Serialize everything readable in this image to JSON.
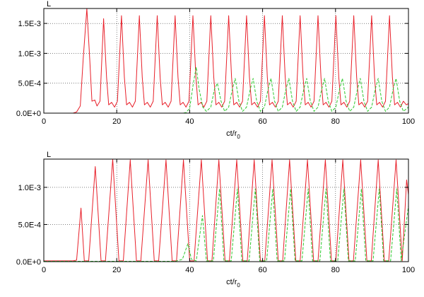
{
  "chart_data": [
    {
      "type": "line",
      "title": "",
      "ylabel": "L",
      "xlabel": "ct/r",
      "xlabel_sub": "0",
      "xlim": [
        0,
        100
      ],
      "ylim": [
        0,
        0.00175
      ],
      "xticks": [
        0,
        20,
        40,
        60,
        80,
        100
      ],
      "yticks": [
        {
          "value": 0,
          "label": "0.0E+0"
        },
        {
          "value": 0.0005,
          "label": "5.0E-4"
        },
        {
          "value": 0.001,
          "label": "1.0E-3"
        },
        {
          "value": 0.0015,
          "label": "1.5E-3"
        }
      ],
      "grid": true,
      "legend": "none",
      "series": [
        {
          "color": "#e8202a",
          "style": "solid",
          "x": [
            0,
            8,
            9,
            10,
            10.8,
            11.8,
            12.6,
            13.2,
            14,
            14.6,
            15.4,
            16.4,
            17.2,
            17.8,
            18.6,
            19.4,
            20.2,
            21.3,
            22.1,
            22.7,
            23.5,
            24.3,
            25.1,
            26.2,
            27,
            27.6,
            28.4,
            29.2,
            30,
            31.1,
            31.9,
            32.5,
            33.3,
            34.1,
            34.9,
            36,
            36.8,
            37.4,
            38.2,
            39,
            39.8,
            40.9,
            41.7,
            42.3,
            43.1,
            43.9,
            44.7,
            45.8,
            46.6,
            47.2,
            48,
            48.8,
            49.6,
            50.7,
            51.5,
            52.1,
            52.9,
            53.7,
            54.5,
            55.6,
            56.4,
            57,
            57.8,
            58.6,
            59.4,
            60.5,
            61.3,
            61.9,
            62.7,
            63.5,
            64.3,
            65.4,
            66.2,
            66.8,
            67.6,
            68.4,
            69.2,
            70.3,
            71.1,
            71.7,
            72.5,
            73.3,
            74.1,
            75.2,
            76,
            76.6,
            77.4,
            78.2,
            79,
            80.1,
            80.9,
            81.5,
            82.3,
            83.1,
            83.9,
            85,
            85.8,
            86.4,
            87.2,
            88,
            88.8,
            89.9,
            90.7,
            91.3,
            92.1,
            92.9,
            93.7,
            94.8,
            95.6,
            96.2,
            97,
            97.8,
            98.6,
            99.4,
            100
          ],
          "y": [
            0,
            0,
            2e-05,
            0.00012,
            0.0009,
            0.00175,
            0.0009,
            0.0002,
            0.00022,
            0.00012,
            0.0002,
            0.00158,
            0.0006,
            0.00014,
            0.00018,
            0.0001,
            0.0002,
            0.00163,
            0.0006,
            0.00014,
            0.00018,
            0.0001,
            0.0002,
            0.00163,
            0.0006,
            0.00014,
            0.00018,
            0.0001,
            0.0002,
            0.00163,
            0.0006,
            0.00014,
            0.00018,
            0.0001,
            0.0002,
            0.00163,
            0.0006,
            0.00014,
            0.00018,
            0.0001,
            0.0002,
            0.00163,
            0.0006,
            0.00014,
            0.00018,
            0.0001,
            0.0002,
            0.00163,
            0.0006,
            0.00014,
            0.00018,
            0.0001,
            0.0002,
            0.00163,
            0.0006,
            0.00014,
            0.00018,
            0.0001,
            0.0002,
            0.00163,
            0.0006,
            0.00014,
            0.00018,
            0.0001,
            0.0002,
            0.00163,
            0.0006,
            0.00014,
            0.00018,
            0.0001,
            0.0002,
            0.00163,
            0.0006,
            0.00014,
            0.00018,
            0.0001,
            0.0002,
            0.00163,
            0.0006,
            0.00014,
            0.00018,
            0.0001,
            0.0002,
            0.00163,
            0.0006,
            0.00014,
            0.00018,
            0.0001,
            0.0002,
            0.00163,
            0.0006,
            0.00014,
            0.00018,
            0.0001,
            0.0002,
            0.00163,
            0.0006,
            0.00014,
            0.00018,
            0.0001,
            0.0002,
            0.00163,
            0.0006,
            0.00014,
            0.00018,
            0.0001,
            0.0002,
            0.00163,
            0.0006,
            0.00014,
            0.00018,
            0.0001,
            0.0002,
            0.00014,
            0.00016
          ]
        },
        {
          "color": "#2ec82e",
          "style": "dashed",
          "x": [
            0,
            38,
            39,
            40,
            41,
            41.8,
            42.6,
            43.6,
            44.6,
            45.8,
            46.8,
            47.6,
            48.6,
            49.6,
            50.7,
            51.7,
            52.5,
            53.5,
            54.5,
            55.6,
            56.6,
            57.4,
            58.4,
            59.4,
            60.5,
            61.5,
            62.3,
            63.3,
            64.3,
            65.4,
            66.4,
            67.2,
            68.2,
            69.2,
            70.3,
            71.3,
            72.1,
            73.1,
            74.1,
            75.2,
            76.2,
            77,
            78,
            79,
            80.1,
            81.1,
            81.9,
            82.9,
            83.9,
            85,
            86,
            86.8,
            87.8,
            88.8,
            89.9,
            90.9,
            91.7,
            92.7,
            93.7,
            94.8,
            95.8,
            96.6,
            97.6,
            98.6,
            100
          ],
          "y": [
            0,
            0,
            1e-05,
            8e-05,
            0.0005,
            0.00077,
            0.0004,
            0.0001,
            3e-05,
            0.0001,
            0.0004,
            0.0005,
            0.0002,
            3e-05,
            0.0001,
            0.0004,
            0.00058,
            0.0002,
            3e-05,
            0.0001,
            0.0004,
            0.00058,
            0.0002,
            3e-05,
            0.0001,
            0.0004,
            0.00058,
            0.0002,
            3e-05,
            0.0001,
            0.0004,
            0.00058,
            0.0002,
            3e-05,
            0.0001,
            0.0004,
            0.00058,
            0.0002,
            3e-05,
            0.0001,
            0.0004,
            0.00058,
            0.0002,
            3e-05,
            0.0001,
            0.0004,
            0.00058,
            0.0002,
            3e-05,
            0.0001,
            0.0004,
            0.00058,
            0.0002,
            3e-05,
            0.0001,
            0.0004,
            0.00058,
            0.0002,
            3e-05,
            0.0001,
            0.0004,
            0.00058,
            0.0002,
            3e-05,
            0.0001
          ]
        }
      ]
    },
    {
      "type": "line",
      "title": "",
      "ylabel": "L",
      "xlabel": "ct/r",
      "xlabel_sub": "0",
      "xlim": [
        0,
        100
      ],
      "ylim": [
        0,
        0.00138
      ],
      "xticks": [
        0,
        20,
        40,
        60,
        80,
        100
      ],
      "yticks": [
        {
          "value": 0,
          "label": "0.0E+0"
        },
        {
          "value": 0.0005,
          "label": "5.0E-4"
        },
        {
          "value": 0.001,
          "label": "1.0E-3"
        }
      ],
      "grid": true,
      "legend": "none",
      "series": [
        {
          "color": "#e8202a",
          "style": "solid",
          "x": [
            0,
            8,
            9,
            10.2,
            11.1,
            12.3,
            14.1,
            15.7,
            16.9,
            18.9,
            20.6,
            21.8,
            23.7,
            25.4,
            26.6,
            28.6,
            30.3,
            31.5,
            33.5,
            35.2,
            36.4,
            38.3,
            40,
            41.2,
            43.2,
            44.9,
            46.1,
            48,
            49.7,
            50.9,
            52.9,
            54.6,
            55.8,
            57.7,
            59.4,
            60.6,
            62.6,
            64.3,
            65.5,
            67.4,
            69.1,
            70.3,
            72.3,
            74,
            75.2,
            77.2,
            78.9,
            80.1,
            82,
            83.7,
            84.9,
            86.9,
            88.6,
            89.8,
            91.7,
            93.4,
            94.6,
            96.6,
            98.3,
            99.5,
            100
          ],
          "y": [
            1e-05,
            1e-05,
            2e-05,
            0.00072,
            1e-05,
            1e-05,
            0.00128,
            1e-05,
            1e-05,
            0.00138,
            1e-05,
            1e-05,
            0.00137,
            1e-05,
            1e-05,
            0.00137,
            1e-05,
            1e-05,
            0.00137,
            1e-05,
            1e-05,
            0.00137,
            1e-05,
            1e-05,
            0.00137,
            1e-05,
            1e-05,
            0.00137,
            1e-05,
            1e-05,
            0.00137,
            1e-05,
            1e-05,
            0.00137,
            1e-05,
            1e-05,
            0.00137,
            1e-05,
            1e-05,
            0.00137,
            1e-05,
            1e-05,
            0.00137,
            1e-05,
            1e-05,
            0.00137,
            1e-05,
            1e-05,
            0.00137,
            1e-05,
            1e-05,
            0.00137,
            1e-05,
            1e-05,
            0.00137,
            1e-05,
            1e-05,
            0.00137,
            1e-05,
            0.0011,
            0.0009
          ]
        },
        {
          "color": "#2ec82e",
          "style": "dashed",
          "x": [
            0,
            36,
            38,
            39.5,
            40.5,
            41.8,
            43.5,
            44.6,
            46.5,
            48.2,
            49.4,
            51.4,
            53.1,
            54.3,
            56.3,
            58,
            59.2,
            61.1,
            62.8,
            64,
            66,
            67.7,
            68.9,
            70.8,
            72.5,
            73.7,
            75.7,
            77.4,
            78.6,
            80.6,
            82.3,
            83.5,
            85.4,
            87.1,
            88.3,
            90.3,
            92,
            93.2,
            95.1,
            96.8,
            98,
            100
          ],
          "y": [
            5e-06,
            5e-06,
            3e-05,
            0.00024,
            3e-05,
            1e-05,
            0.00062,
            1e-05,
            1e-05,
            0.00098,
            1e-05,
            1e-05,
            0.00098,
            1e-05,
            1e-05,
            0.00098,
            1e-05,
            1e-05,
            0.00098,
            1e-05,
            1e-05,
            0.00098,
            1e-05,
            1e-05,
            0.00098,
            1e-05,
            1e-05,
            0.00098,
            1e-05,
            1e-05,
            0.00098,
            1e-05,
            1e-05,
            0.00098,
            1e-05,
            1e-05,
            0.00098,
            1e-05,
            1e-05,
            0.00098,
            1e-05,
            0.00075
          ]
        }
      ]
    }
  ]
}
